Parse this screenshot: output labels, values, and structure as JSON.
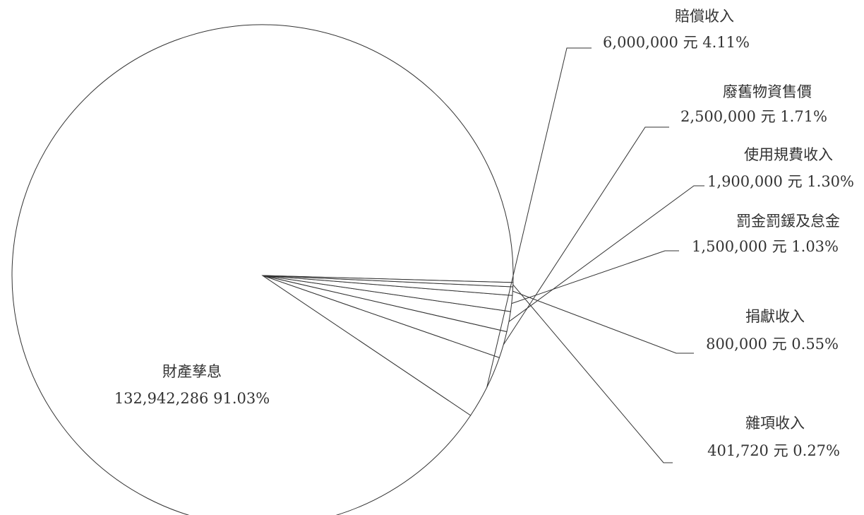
{
  "chart_data": {
    "type": "pie",
    "title": "",
    "unit": "元",
    "slices": [
      {
        "name": "財產孳息",
        "value": 132942286,
        "value_text": "132,942,286",
        "percent_text": "91.03%"
      },
      {
        "name": "賠償收入",
        "value": 6000000,
        "value_text": "6,000,000 元",
        "percent_text": "4.11%"
      },
      {
        "name": "廢舊物資售價",
        "value": 2500000,
        "value_text": "2,500,000 元",
        "percent_text": "1.71%"
      },
      {
        "name": "使用規費收入",
        "value": 1900000,
        "value_text": "1,900,000 元",
        "percent_text": "1.30%"
      },
      {
        "name": "罰金罰鍰及怠金",
        "value": 1500000,
        "value_text": "1,500,000 元",
        "percent_text": "1.03%"
      },
      {
        "name": "捐獻收入",
        "value": 800000,
        "value_text": "800,000 元",
        "percent_text": "0.55%"
      },
      {
        "name": "雜項收入",
        "value": 401720,
        "value_text": "401,720 元",
        "percent_text": "0.27%"
      }
    ]
  }
}
